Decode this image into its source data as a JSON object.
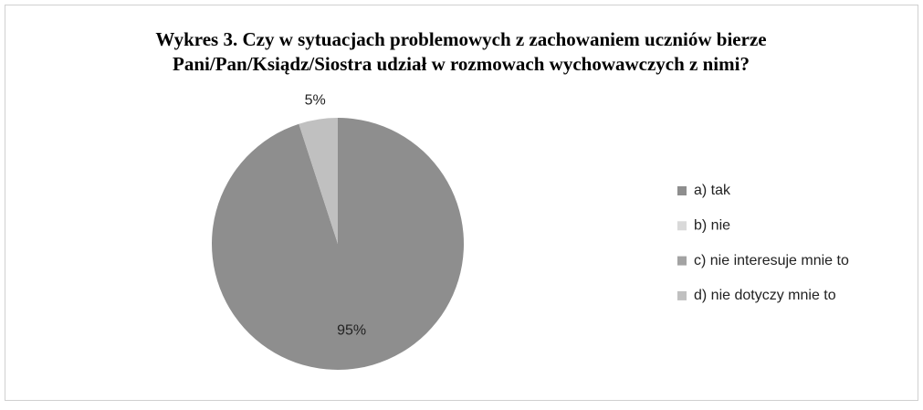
{
  "chart_data": {
    "type": "pie",
    "title": [
      "Wykres 3. Czy w sytuacjach problemowych z zachowaniem uczniów bierze",
      "Pani/Pan/Ksiądz/Siostra udział w rozmowach wychowawczych z nimi?"
    ],
    "categories": [
      "a) tak",
      "b) nie",
      "c) nie interesuje mnie to",
      "d) nie dotyczy mnie to"
    ],
    "values": [
      95,
      0,
      0,
      5
    ],
    "value_labels": [
      "95%",
      null,
      null,
      "5%"
    ],
    "colors": [
      "#8e8e8e",
      "#d9d9d9",
      "#a3a3a3",
      "#c0c0c0"
    ],
    "legend": "right"
  }
}
